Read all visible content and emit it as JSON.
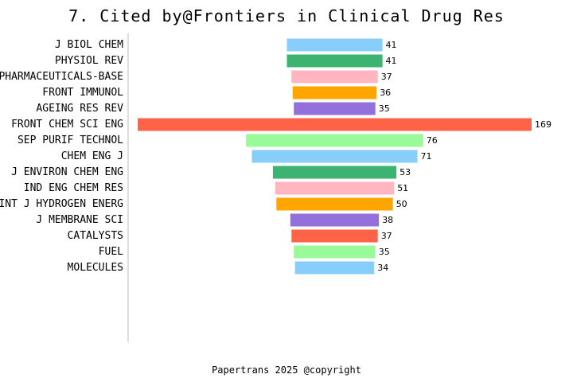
{
  "title": "7. Cited by@Frontiers in Clinical Drug Res",
  "footer": "Papertrans 2025 @copyright",
  "colors": [
    "#87CEFA",
    "#3CB371",
    "#FFB6C1",
    "#FFA500",
    "#9370DB",
    "#FF6347",
    "#98FB98"
  ],
  "chart_data": {
    "type": "bar",
    "orientation": "horizontal",
    "layout": "centered",
    "categories": [
      "J BIOL CHEM",
      "PHYSIOL REV",
      "PHARMACEUTICALS-BASE",
      "FRONT IMMUNOL",
      "AGEING RES REV",
      "FRONT CHEM SCI ENG",
      "SEP PURIF TECHNOL",
      "CHEM ENG J",
      "J ENVIRON CHEM ENG",
      "IND ENG CHEM RES",
      "INT J HYDROGEN ENERG",
      "J MEMBRANE SCI",
      "CATALYSTS",
      "FUEL",
      "MOLECULES"
    ],
    "values": [
      41,
      41,
      37,
      36,
      35,
      169,
      76,
      71,
      53,
      51,
      50,
      38,
      37,
      35,
      34
    ],
    "title": "7. Cited by@Frontiers in Clinical Drug Res",
    "xlabel": "",
    "ylabel": "",
    "xlim": [
      0,
      169
    ],
    "grid": false
  }
}
